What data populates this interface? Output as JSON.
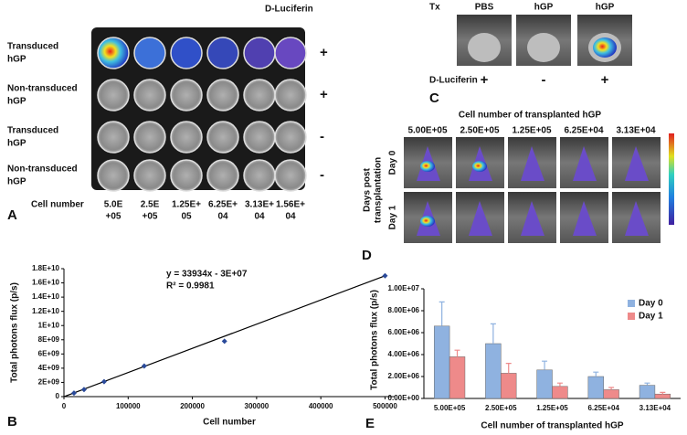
{
  "panel_a": {
    "letter": "A",
    "reagent": "D-Luciferin",
    "rows": [
      [
        "Transduced",
        "hGP"
      ],
      [
        "Non-transduced",
        "hGP"
      ],
      [
        "Transduced",
        "hGP"
      ],
      [
        "Non-transduced",
        "hGP"
      ]
    ],
    "signs": [
      "+",
      "+",
      "-",
      "-"
    ],
    "cell_number_label": "Cell number",
    "cell_numbers": [
      [
        "5.0E",
        "+05"
      ],
      [
        "2.5E",
        "+05"
      ],
      [
        "1.25E+",
        "05"
      ],
      [
        "6.25E+",
        "04"
      ],
      [
        "3.13E+",
        "04"
      ],
      [
        "1.56E+",
        "04"
      ]
    ]
  },
  "panel_c": {
    "letter": "C",
    "row_label": "Tx",
    "treatments": [
      "PBS",
      "hGP",
      "hGP"
    ],
    "reagent": "D-Luciferin",
    "signs": [
      "+",
      "-",
      "+"
    ]
  },
  "panel_d": {
    "letter": "D",
    "title": "Cell number of transplanted hGP",
    "columns": [
      "5.00E+05",
      "2.50E+05",
      "1.25E+05",
      "6.25E+04",
      "3.13E+04"
    ],
    "side_label": [
      "Days post",
      "transplantation"
    ],
    "rows": [
      "Day 0",
      "Day 1"
    ]
  },
  "chart_data": [
    {
      "type": "scatter",
      "panel_label": "B",
      "x_label": "Cell number",
      "y_label": "Total photons flux (p/s)",
      "annotations": [
        "y = 33934x - 3E+07",
        "R² = 0.9981"
      ],
      "x": [
        15625,
        31250,
        62500,
        125000,
        250000,
        500000
      ],
      "values": [
        500000000,
        1000000000,
        2100000000,
        4300000000,
        7800000000,
        17000000000
      ],
      "color": "#2a4a9a",
      "xlim": [
        0,
        515000
      ],
      "xticks": [
        0,
        100000,
        200000,
        300000,
        400000,
        500000
      ],
      "ylim": [
        0,
        18000000000
      ],
      "yticks": [
        0,
        {
          "value": 2000000000,
          "label": "2E+09"
        },
        {
          "value": 4000000000,
          "label": "4E+09"
        },
        {
          "value": 6000000000,
          "label": "6E+09"
        },
        {
          "value": 8000000000,
          "label": "8E+09"
        },
        {
          "value": 10000000000,
          "label": "1E+10"
        },
        {
          "value": 12000000000,
          "label": "1.2E+10"
        },
        {
          "value": 14000000000,
          "label": "1.4E+10"
        },
        {
          "value": 16000000000,
          "label": "1.6E+10"
        },
        {
          "value": 18000000000,
          "label": "1.8E+10"
        }
      ]
    },
    {
      "type": "bar",
      "panel_label": "E",
      "x_label": "Cell number of transplanted hGP",
      "y_label": "Total photons flux (p/s)",
      "categories": [
        "5.00E+05",
        "2.50E+05",
        "1.25E+05",
        "6.25E+04",
        "3.13E+04"
      ],
      "series": [
        {
          "name": "Day 0",
          "color": "#8fb2e0",
          "values": [
            6600000,
            5000000,
            2600000,
            2000000,
            1200000
          ],
          "errors": [
            2200000,
            1800000,
            800000,
            400000,
            200000
          ]
        },
        {
          "name": "Day 1",
          "color": "#ee8a8a",
          "values": [
            3800000,
            2300000,
            1100000,
            800000,
            400000
          ],
          "errors": [
            600000,
            900000,
            300000,
            200000,
            150000
          ]
        }
      ],
      "ylim": [
        0,
        10000000
      ],
      "yticks": [
        {
          "value": 0,
          "label": "0.00E+00"
        },
        {
          "value": 2000000,
          "label": "2.00E+06"
        },
        {
          "value": 4000000,
          "label": "4.00E+06"
        },
        {
          "value": 6000000,
          "label": "6.00E+06"
        },
        {
          "value": 8000000,
          "label": "8.00E+06"
        },
        {
          "value": 10000000,
          "label": "1.00E+07"
        }
      ],
      "legend": "upper right"
    }
  ]
}
